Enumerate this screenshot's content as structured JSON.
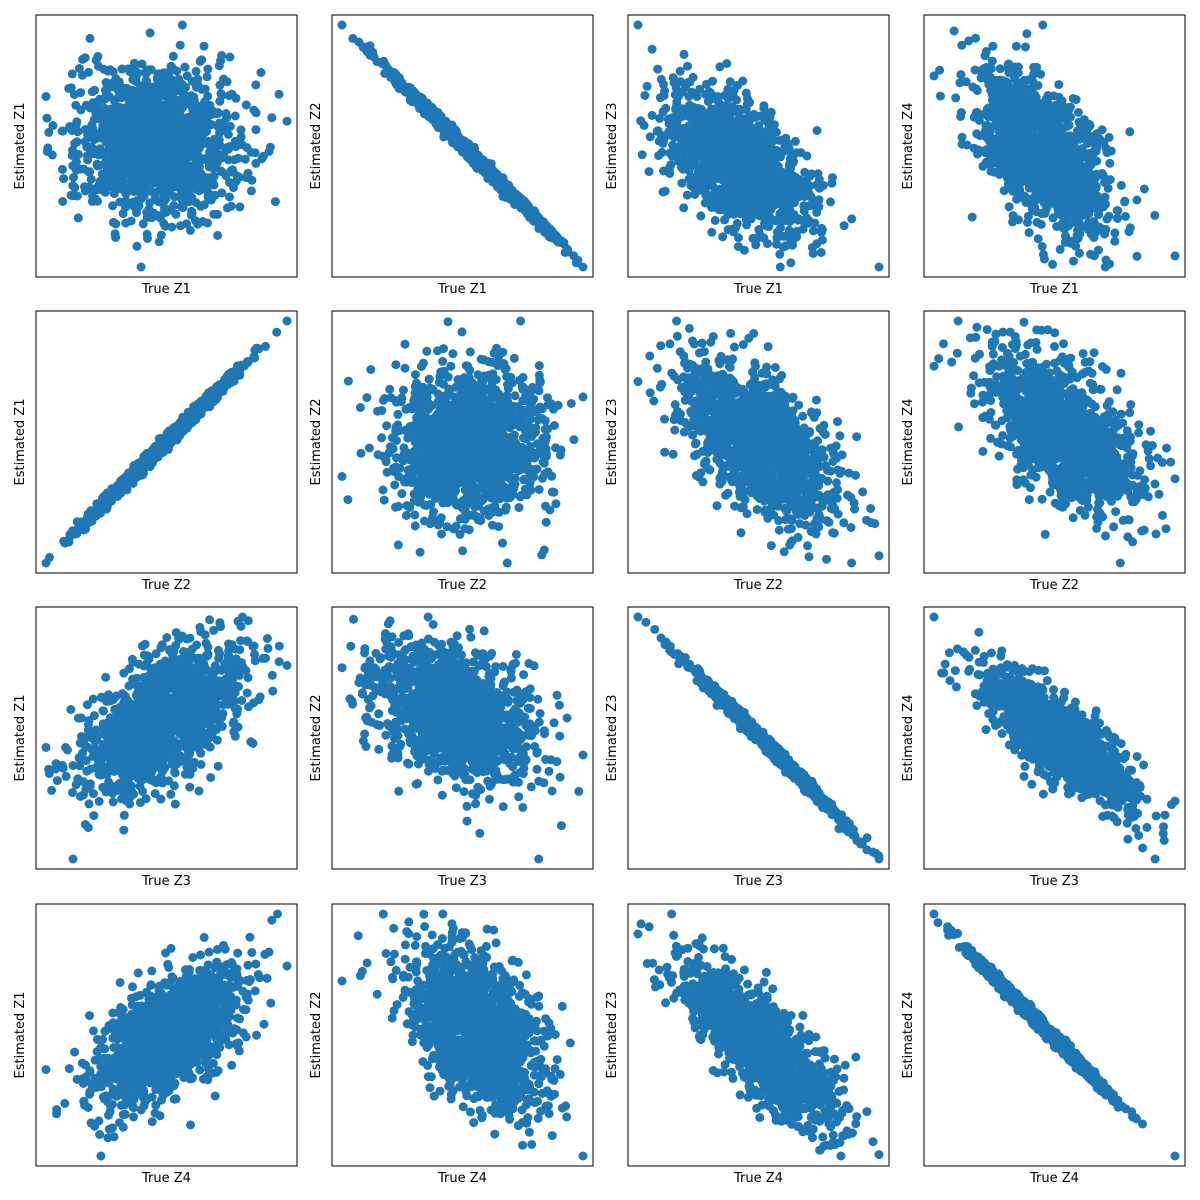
{
  "chart_data": [
    {
      "type": "scatter",
      "xlabel": "True Z1",
      "ylabel": "Estimated Z1",
      "r": 0.0,
      "n_points": 1400,
      "seed": 101,
      "marker_color": "#1f77b4",
      "ticks": false,
      "grid": false
    },
    {
      "type": "scatter",
      "xlabel": "True Z1",
      "ylabel": "Estimated Z2",
      "r": -0.99,
      "n_points": 1400,
      "seed": 102,
      "marker_color": "#1f77b4",
      "ticks": false,
      "grid": false
    },
    {
      "type": "scatter",
      "xlabel": "True Z1",
      "ylabel": "Estimated Z3",
      "r": -0.55,
      "n_points": 1400,
      "seed": 103,
      "marker_color": "#1f77b4",
      "ticks": false,
      "grid": false
    },
    {
      "type": "scatter",
      "xlabel": "True Z1",
      "ylabel": "Estimated Z4",
      "r": -0.55,
      "n_points": 1400,
      "seed": 104,
      "marker_color": "#1f77b4",
      "ticks": false,
      "grid": false
    },
    {
      "type": "scatter",
      "xlabel": "True Z2",
      "ylabel": "Estimated Z1",
      "r": 0.99,
      "n_points": 1400,
      "seed": 105,
      "marker_color": "#1f77b4",
      "ticks": false,
      "grid": false
    },
    {
      "type": "scatter",
      "xlabel": "True Z2",
      "ylabel": "Estimated Z2",
      "r": 0.0,
      "n_points": 1400,
      "seed": 106,
      "marker_color": "#1f77b4",
      "ticks": false,
      "grid": false
    },
    {
      "type": "scatter",
      "xlabel": "True Z2",
      "ylabel": "Estimated Z3",
      "r": -0.55,
      "n_points": 1400,
      "seed": 107,
      "marker_color": "#1f77b4",
      "ticks": false,
      "grid": false
    },
    {
      "type": "scatter",
      "xlabel": "True Z2",
      "ylabel": "Estimated Z4",
      "r": -0.55,
      "n_points": 1400,
      "seed": 108,
      "marker_color": "#1f77b4",
      "ticks": false,
      "grid": false
    },
    {
      "type": "scatter",
      "xlabel": "True Z3",
      "ylabel": "Estimated Z1",
      "r": 0.55,
      "n_points": 1400,
      "seed": 109,
      "marker_color": "#1f77b4",
      "ticks": false,
      "grid": false
    },
    {
      "type": "scatter",
      "xlabel": "True Z3",
      "ylabel": "Estimated Z2",
      "r": -0.45,
      "n_points": 1400,
      "seed": 110,
      "marker_color": "#1f77b4",
      "ticks": false,
      "grid": false
    },
    {
      "type": "scatter",
      "xlabel": "True Z3",
      "ylabel": "Estimated Z3",
      "r": -0.99,
      "n_points": 1400,
      "seed": 111,
      "marker_color": "#1f77b4",
      "ticks": false,
      "grid": false
    },
    {
      "type": "scatter",
      "xlabel": "True Z3",
      "ylabel": "Estimated Z4",
      "r": -0.8,
      "n_points": 1400,
      "seed": 112,
      "marker_color": "#1f77b4",
      "ticks": false,
      "grid": false
    },
    {
      "type": "scatter",
      "xlabel": "True Z4",
      "ylabel": "Estimated Z1",
      "r": 0.55,
      "n_points": 1400,
      "seed": 113,
      "marker_color": "#1f77b4",
      "ticks": false,
      "grid": false
    },
    {
      "type": "scatter",
      "xlabel": "True Z4",
      "ylabel": "Estimated Z2",
      "r": -0.45,
      "n_points": 1400,
      "seed": 114,
      "marker_color": "#1f77b4",
      "ticks": false,
      "grid": false
    },
    {
      "type": "scatter",
      "xlabel": "True Z4",
      "ylabel": "Estimated Z3",
      "r": -0.8,
      "n_points": 1400,
      "seed": 115,
      "marker_color": "#1f77b4",
      "ticks": false,
      "grid": false
    },
    {
      "type": "scatter",
      "xlabel": "True Z4",
      "ylabel": "Estimated Z4",
      "r": -0.99,
      "n_points": 1400,
      "seed": 116,
      "marker_color": "#1f77b4",
      "ticks": false,
      "grid": false
    }
  ]
}
